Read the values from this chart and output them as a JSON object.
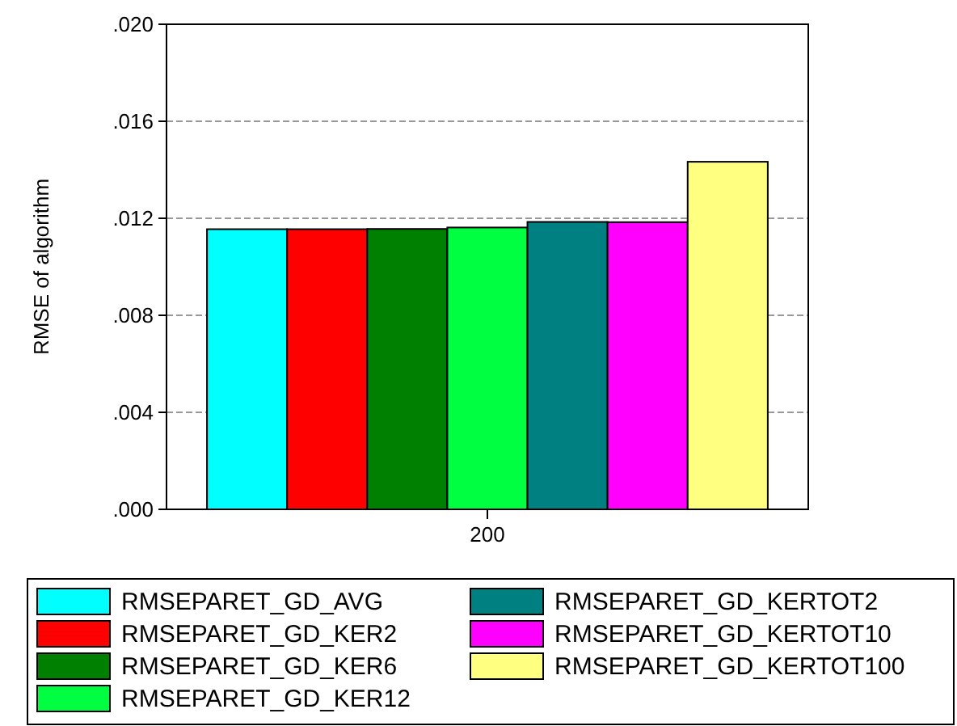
{
  "chart_data": {
    "type": "bar",
    "ylabel": "RMSE of algorithm",
    "categories": [
      "200"
    ],
    "series": [
      {
        "name": "RMSEPARET_GD_AVG",
        "color": "#00ffff",
        "values": [
          0.01155
        ]
      },
      {
        "name": "RMSEPARET_GD_KER2",
        "color": "#ff0000",
        "values": [
          0.01155
        ]
      },
      {
        "name": "RMSEPARET_GD_KER6",
        "color": "#008000",
        "values": [
          0.01156
        ]
      },
      {
        "name": "RMSEPARET_GD_KER12",
        "color": "#00ff40",
        "values": [
          0.01162
        ]
      },
      {
        "name": "RMSEPARET_GD_KERTOT2",
        "color": "#008080",
        "values": [
          0.01185
        ]
      },
      {
        "name": "RMSEPARET_GD_KERTOT10",
        "color": "#ff00ff",
        "values": [
          0.01184
        ]
      },
      {
        "name": "RMSEPARET_GD_KERTOT100",
        "color": "#ffff80",
        "values": [
          0.01433
        ]
      }
    ],
    "ylim": [
      0,
      0.02
    ],
    "yticks": [
      {
        "value": 0,
        "label": ".000"
      },
      {
        "value": 0.004,
        "label": ".004"
      },
      {
        "value": 0.008,
        "label": ".008"
      },
      {
        "value": 0.012,
        "label": ".012"
      },
      {
        "value": 0.016,
        "label": ".016"
      },
      {
        "value": 0.02,
        "label": ".020"
      }
    ],
    "grid": "y",
    "legend": "bottom"
  }
}
